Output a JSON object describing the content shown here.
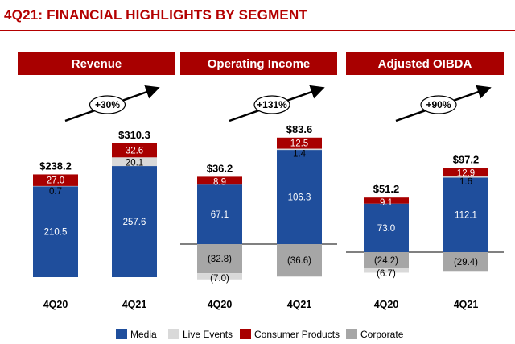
{
  "page_title": "4Q21: FINANCIAL HIGHLIGHTS BY SEGMENT",
  "colors": {
    "brand_red": "#b40000",
    "media": "#1f4e9c",
    "live_events": "#d9d9d9",
    "consumer_products": "#a80000",
    "corporate": "#a6a6a6"
  },
  "legend": {
    "items": [
      {
        "name": "Media",
        "color": "#1f4e9c"
      },
      {
        "name": "Live Events",
        "color": "#d9d9d9"
      },
      {
        "name": "Consumer Products",
        "color": "#a80000"
      },
      {
        "name": "Corporate",
        "color": "#a6a6a6"
      }
    ]
  },
  "chart_data": [
    {
      "type": "bar",
      "stacked": true,
      "title": "Revenue",
      "categories": [
        "4Q20",
        "4Q21"
      ],
      "growth_label": "+30%",
      "totals": [
        "$238.2",
        "$310.3"
      ],
      "series": [
        {
          "name": "Media",
          "values": [
            210.5,
            257.6
          ],
          "labels": [
            "210.5",
            "257.6"
          ]
        },
        {
          "name": "Live Events",
          "values": [
            0.7,
            20.1
          ],
          "labels": [
            "0.7",
            "20.1"
          ]
        },
        {
          "name": "Consumer Products",
          "values": [
            27.0,
            32.6
          ],
          "labels": [
            "27.0",
            "32.6"
          ]
        }
      ]
    },
    {
      "type": "bar",
      "stacked": true,
      "title": "Operating Income",
      "categories": [
        "4Q20",
        "4Q21"
      ],
      "growth_label": "+131%",
      "totals": [
        "$36.2",
        "$83.6"
      ],
      "series": [
        {
          "name": "Media",
          "values": [
            67.1,
            106.3
          ],
          "labels": [
            "67.1",
            "106.3"
          ]
        },
        {
          "name": "Live Events",
          "values": [
            0,
            1.4
          ],
          "labels": [
            "",
            "1.4"
          ]
        },
        {
          "name": "Consumer Products",
          "values": [
            8.9,
            12.5
          ],
          "labels": [
            "8.9",
            "12.5"
          ]
        },
        {
          "name": "Corporate",
          "values": [
            -32.8,
            -36.6
          ],
          "labels": [
            "(32.8)",
            "(36.6)"
          ]
        },
        {
          "name": "Live Events",
          "values": [
            -7.0,
            0
          ],
          "labels": [
            "(7.0)",
            ""
          ]
        }
      ]
    },
    {
      "type": "bar",
      "stacked": true,
      "title": "Adjusted OIBDA",
      "categories": [
        "4Q20",
        "4Q21"
      ],
      "growth_label": "+90%",
      "totals": [
        "$51.2",
        "$97.2"
      ],
      "series": [
        {
          "name": "Media",
          "values": [
            73.0,
            112.1
          ],
          "labels": [
            "73.0",
            "112.1"
          ]
        },
        {
          "name": "Live Events",
          "values": [
            0,
            1.6
          ],
          "labels": [
            "",
            "1.6"
          ]
        },
        {
          "name": "Consumer Products",
          "values": [
            9.1,
            12.9
          ],
          "labels": [
            "9.1",
            "12.9"
          ]
        },
        {
          "name": "Corporate",
          "values": [
            -24.2,
            -29.4
          ],
          "labels": [
            "(24.2)",
            "(29.4)"
          ]
        },
        {
          "name": "Live Events",
          "values": [
            -6.7,
            0
          ],
          "labels": [
            "(6.7)",
            ""
          ]
        }
      ]
    }
  ]
}
